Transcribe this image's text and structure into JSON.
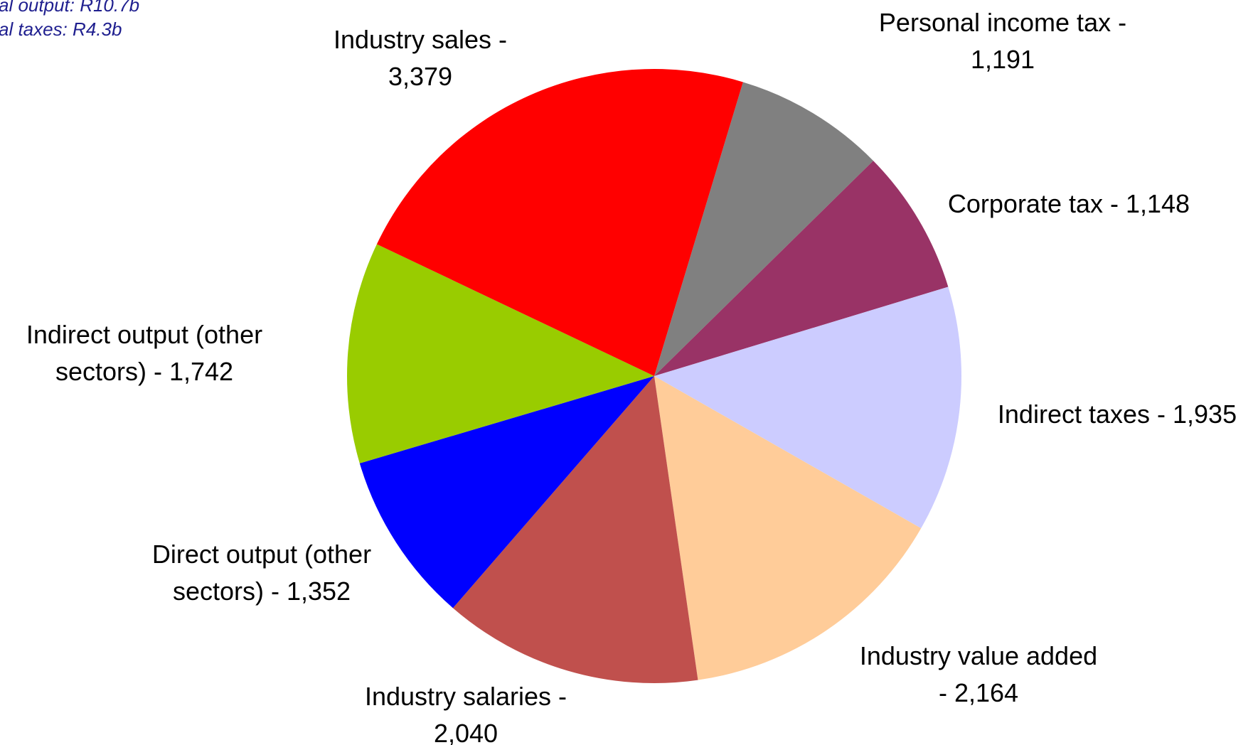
{
  "chart_data": {
    "type": "pie",
    "notes": [
      "al output: R10.7b",
      "al taxes: R4.3b"
    ],
    "labels": [
      [
        "Personal income tax -",
        "1,191"
      ],
      [
        "Corporate tax - 1,148"
      ],
      [
        "Indirect taxes - 1,935"
      ],
      [
        "Industry value added",
        "- 2,164"
      ],
      [
        "Industry salaries -",
        "2,040"
      ],
      [
        "Direct output (other",
        "sectors) - 1,352"
      ],
      [
        "Indirect output (other",
        "sectors) - 1,742"
      ],
      [
        "Industry sales -",
        "3,379"
      ]
    ],
    "values": [
      1191,
      1148,
      1935,
      2164,
      2040,
      1352,
      1742,
      3379
    ],
    "colors": [
      "#808080",
      "#993366",
      "#CCCCFF",
      "#FFCC99",
      "#C0504D",
      "#0000FF",
      "#99CC00",
      "#FF0000"
    ]
  }
}
